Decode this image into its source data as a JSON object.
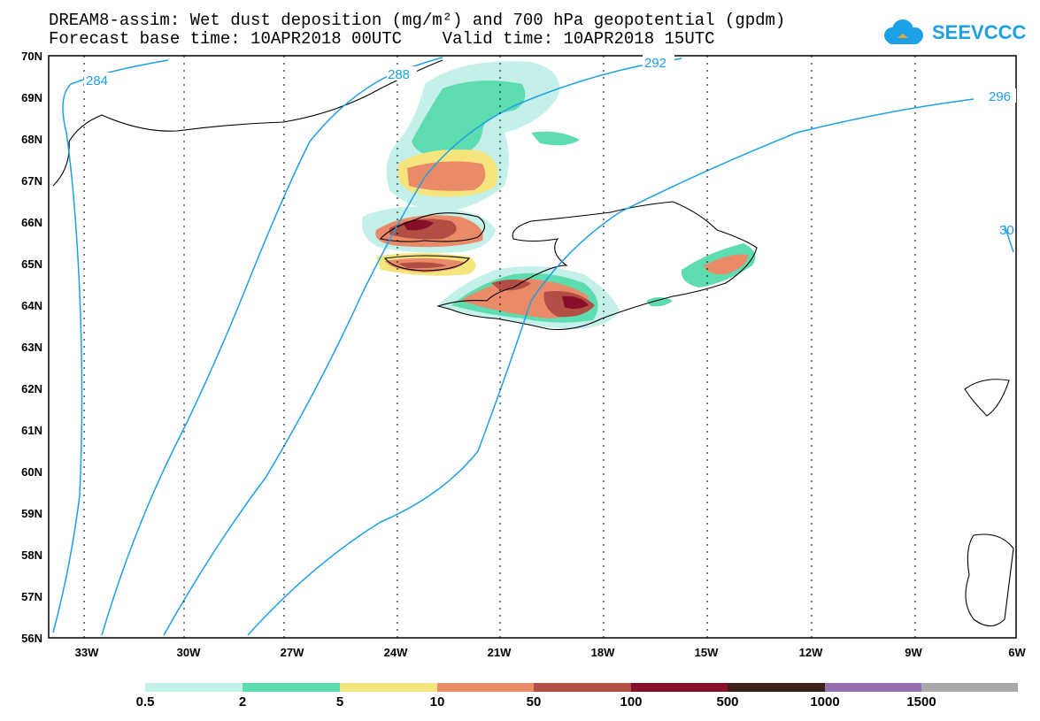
{
  "title": {
    "line1": "DREAM8-assim: Wet dust deposition (mg/m²) and 700 hPa geopotential (gpdm)",
    "line2": "Forecast base time: 10APR2018 00UTC    Valid time: 10APR2018 15UTC"
  },
  "logo": {
    "text": "SEEVCCC",
    "icon": "cloud-icon"
  },
  "axes": {
    "lat_labels": [
      "70N",
      "69N",
      "68N",
      "67N",
      "66N",
      "65N",
      "64N",
      "63N",
      "62N",
      "61N",
      "60N",
      "59N",
      "58N",
      "57N",
      "56N"
    ],
    "lon_labels": [
      "33W",
      "30W",
      "27W",
      "24W",
      "21W",
      "18W",
      "15W",
      "12W",
      "9W",
      "6W"
    ]
  },
  "contour_labels": [
    "284",
    "288",
    "292",
    "296",
    "30"
  ],
  "colorbar": {
    "labels": [
      "0.5",
      "2",
      "5",
      "10",
      "50",
      "100",
      "500",
      "1000",
      "1500"
    ],
    "colors": [
      "#c3f0e8",
      "#5ddcb0",
      "#f6e57c",
      "#e98a68",
      "#b24e43",
      "#870f2a",
      "#3c1f19",
      "#9570ae",
      "#a8a8a8"
    ]
  },
  "colors": {
    "contour": "#1ea0e6",
    "coast": "#000000"
  }
}
